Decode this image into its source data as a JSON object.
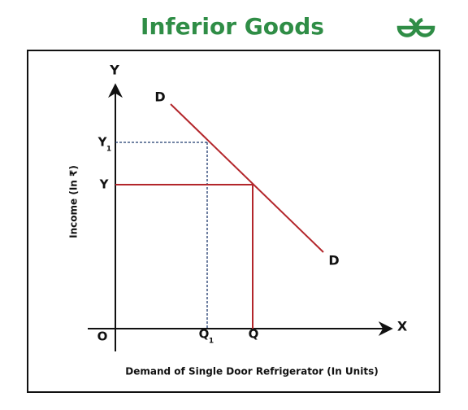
{
  "header": {
    "title": "Inferior Goods"
  },
  "diagram": {
    "y_axis": {
      "letter": "Y",
      "title": "Income (In ₹)"
    },
    "x_axis": {
      "letter": "X",
      "title": "Demand of Single Door Refrigerator (In Units)"
    },
    "origin": "O",
    "curve": {
      "start_label": "D",
      "end_label": "D"
    },
    "levels": {
      "y1": {
        "main": "Y",
        "sub": "1"
      },
      "y": "Y",
      "q1": {
        "main": "Q",
        "sub": "1"
      },
      "q": "Q"
    }
  }
}
